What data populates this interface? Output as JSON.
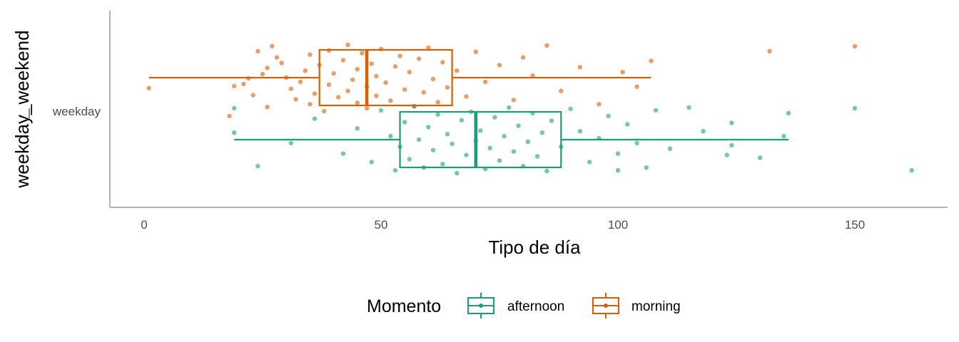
{
  "chart_data": {
    "type": "boxplot",
    "orientation": "horizontal",
    "xlabel": "Tipo de día",
    "ylabel": "weekday_weekend",
    "xlim": [
      -7,
      168
    ],
    "xticks": [
      0,
      50,
      100,
      150
    ],
    "categories": [
      "weekday"
    ],
    "grid": false,
    "legend": {
      "title": "Momento",
      "position": "bottom",
      "entries": [
        "afternoon",
        "morning"
      ]
    },
    "series": [
      {
        "name": "morning",
        "color": "#D95F02",
        "box": {
          "whisker_low": 1,
          "q1": 37,
          "median": 47,
          "q3": 65,
          "whisker_high": 107
        },
        "outliers": [
          132,
          150
        ],
        "points": [
          [
            1,
            0.35
          ],
          [
            18,
            -0.05
          ],
          [
            19,
            0.38
          ],
          [
            21,
            0.41
          ],
          [
            22,
            0.49
          ],
          [
            23,
            0.25
          ],
          [
            24,
            0.88
          ],
          [
            25,
            0.55
          ],
          [
            26,
            0.64
          ],
          [
            26,
            0.08
          ],
          [
            27,
            0.95
          ],
          [
            28,
            0.79
          ],
          [
            29,
            0.71
          ],
          [
            30,
            0.5
          ],
          [
            31,
            0.34
          ],
          [
            32,
            0.19
          ],
          [
            33,
            0.44
          ],
          [
            34,
            0.6
          ],
          [
            35,
            0.12
          ],
          [
            35,
            0.83
          ],
          [
            36,
            0.27
          ],
          [
            37,
            0.68
          ],
          [
            38,
            0.02
          ],
          [
            39,
            0.4
          ],
          [
            39,
            0.89
          ],
          [
            40,
            0.56
          ],
          [
            41,
            0.22
          ],
          [
            42,
            0.75
          ],
          [
            43,
            0.31
          ],
          [
            43,
            0.97
          ],
          [
            44,
            0.47
          ],
          [
            45,
            0.14
          ],
          [
            45,
            0.62
          ],
          [
            46,
            0.85
          ],
          [
            47,
            0.37
          ],
          [
            47,
            0.06
          ],
          [
            48,
            0.7
          ],
          [
            49,
            0.52
          ],
          [
            49,
            0.24
          ],
          [
            50,
            0.91
          ],
          [
            51,
            0.43
          ],
          [
            52,
            0.17
          ],
          [
            53,
            0.66
          ],
          [
            54,
            0.81
          ],
          [
            55,
            0.33
          ],
          [
            56,
            0.58
          ],
          [
            57,
            0.09
          ],
          [
            58,
            0.77
          ],
          [
            59,
            0.29
          ],
          [
            60,
            0.93
          ],
          [
            61,
            0.48
          ],
          [
            62,
            0.15
          ],
          [
            63,
            0.72
          ],
          [
            64,
            0.36
          ],
          [
            66,
            0.6
          ],
          [
            68,
            0.23
          ],
          [
            70,
            0.87
          ],
          [
            72,
            0.44
          ],
          [
            75,
            0.68
          ],
          [
            78,
            0.18
          ],
          [
            80,
            0.79
          ],
          [
            82,
            0.53
          ],
          [
            85,
            0.96
          ],
          [
            88,
            0.31
          ],
          [
            92,
            0.65
          ],
          [
            96,
            0.12
          ],
          [
            101,
            0.58
          ],
          [
            104,
            0.37
          ],
          [
            107,
            0.74
          ],
          [
            132,
            0.88
          ],
          [
            150,
            0.95
          ]
        ]
      },
      {
        "name": "afternoon",
        "color": "#1B9E77",
        "box": {
          "whisker_low": 19,
          "q1": 54,
          "median": 70,
          "q3": 88,
          "whisker_high": 136
        },
        "outliers": [
          150,
          162
        ],
        "points": [
          [
            19,
            0.95
          ],
          [
            19,
            0.6
          ],
          [
            24,
            0.12
          ],
          [
            31,
            0.45
          ],
          [
            36,
            0.8
          ],
          [
            42,
            0.3
          ],
          [
            45,
            0.66
          ],
          [
            48,
            0.18
          ],
          [
            50,
            0.92
          ],
          [
            52,
            0.55
          ],
          [
            53,
            0.06
          ],
          [
            54,
            0.4
          ],
          [
            55,
            0.75
          ],
          [
            56,
            0.22
          ],
          [
            57,
            0.98
          ],
          [
            58,
            0.5
          ],
          [
            59,
            0.1
          ],
          [
            60,
            0.68
          ],
          [
            61,
            0.35
          ],
          [
            62,
            0.86
          ],
          [
            63,
            0.15
          ],
          [
            64,
            0.58
          ],
          [
            65,
            0.44
          ],
          [
            66,
            0.02
          ],
          [
            67,
            0.78
          ],
          [
            68,
            0.28
          ],
          [
            69,
            0.9
          ],
          [
            70,
            0.48
          ],
          [
            71,
            0.63
          ],
          [
            72,
            0.08
          ],
          [
            73,
            0.38
          ],
          [
            74,
            0.82
          ],
          [
            75,
            0.2
          ],
          [
            76,
            0.55
          ],
          [
            77,
            0.96
          ],
          [
            78,
            0.33
          ],
          [
            79,
            0.7
          ],
          [
            80,
            0.12
          ],
          [
            81,
            0.47
          ],
          [
            82,
            0.88
          ],
          [
            83,
            0.26
          ],
          [
            84,
            0.6
          ],
          [
            85,
            0.05
          ],
          [
            86,
            0.77
          ],
          [
            88,
            0.4
          ],
          [
            90,
            0.94
          ],
          [
            92,
            0.62
          ],
          [
            94,
            0.18
          ],
          [
            96,
            0.52
          ],
          [
            98,
            0.84
          ],
          [
            100,
            0.3
          ],
          [
            100,
            0.06
          ],
          [
            102,
            0.72
          ],
          [
            104,
            0.45
          ],
          [
            106,
            0.1
          ],
          [
            108,
            0.92
          ],
          [
            111,
            0.37
          ],
          [
            115,
            0.96
          ],
          [
            118,
            0.62
          ],
          [
            123,
            0.28
          ],
          [
            124,
            0.74
          ],
          [
            124,
            0.42
          ],
          [
            130,
            0.24
          ],
          [
            135,
            0.55
          ],
          [
            136,
            0.88
          ],
          [
            150,
            0.95
          ],
          [
            162,
            0.06
          ]
        ]
      }
    ]
  }
}
